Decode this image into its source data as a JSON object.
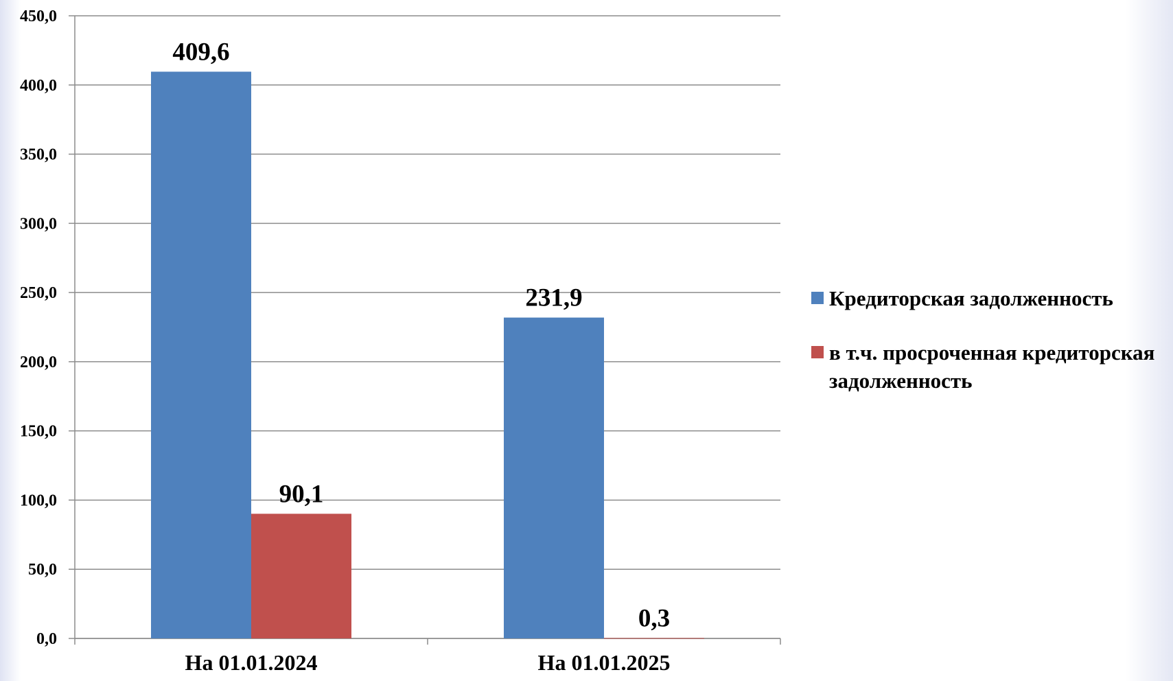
{
  "chart_data": {
    "type": "bar",
    "categories": [
      "На 01.01.2024",
      "На 01.01.2025"
    ],
    "series": [
      {
        "name": "Кредиторская задолженность",
        "color": "#4f81bd",
        "values": [
          409.6,
          231.9
        ],
        "value_labels": [
          "409,6",
          "231,9"
        ]
      },
      {
        "name": "в т.ч. просроченная кредиторская задолженность",
        "color": "#c0504d",
        "values": [
          90.1,
          0.3
        ],
        "value_labels": [
          "90,1",
          "0,3"
        ]
      }
    ],
    "ylim": [
      0,
      450
    ],
    "yticks": [
      {
        "value": 0,
        "label": "0,0"
      },
      {
        "value": 50,
        "label": "50,0"
      },
      {
        "value": 100,
        "label": "100,0"
      },
      {
        "value": 150,
        "label": "150,0"
      },
      {
        "value": 200,
        "label": "200,0"
      },
      {
        "value": 250,
        "label": "250,0"
      },
      {
        "value": 300,
        "label": "300,0"
      },
      {
        "value": 350,
        "label": "350,0"
      },
      {
        "value": 400,
        "label": "400,0"
      },
      {
        "value": 450,
        "label": "450,0"
      }
    ],
    "grid": true,
    "legend": "right"
  }
}
